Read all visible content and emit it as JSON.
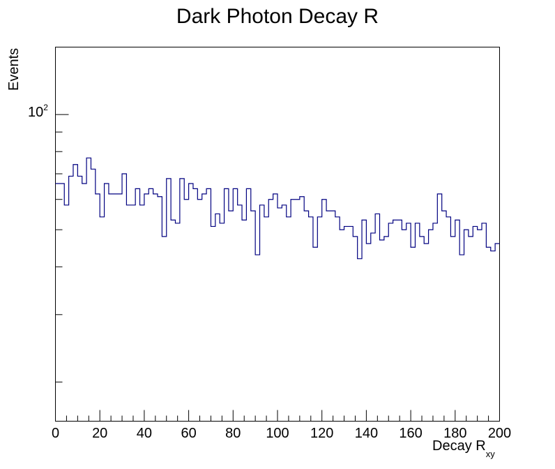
{
  "chart_data": {
    "type": "histogram",
    "title": "Dark Photon Decay R",
    "xlabel_main": "Decay R",
    "xlabel_sub": "xy",
    "ylabel": "Events",
    "y_scale": "log",
    "xlim": [
      0,
      200
    ],
    "ylim": [
      15.8,
      150
    ],
    "bin_width": 2,
    "x_ticks": [
      "0",
      "20",
      "40",
      "60",
      "80",
      "100",
      "120",
      "140",
      "160",
      "180",
      "200"
    ],
    "y_tick_base": "10",
    "y_tick_exponent": "2",
    "line_color": "#000080",
    "values": [
      66,
      66,
      58,
      69,
      74,
      69,
      66,
      77,
      72,
      62,
      54,
      66,
      62,
      62,
      62,
      70,
      58,
      58,
      64,
      58,
      62,
      64,
      62,
      61,
      48,
      68,
      53,
      52,
      68,
      60,
      66,
      64,
      60,
      62,
      64,
      51,
      55,
      52,
      64,
      56,
      64,
      58,
      53,
      64,
      56,
      43,
      58,
      54,
      60,
      62,
      57,
      58,
      54,
      60,
      60,
      61,
      56,
      54,
      45,
      54,
      60,
      56,
      56,
      54,
      50,
      51,
      51,
      48,
      42,
      53,
      46,
      49,
      55,
      47,
      48,
      52,
      53,
      53,
      50,
      52,
      45,
      52,
      48,
      46,
      50,
      52,
      62,
      56,
      54,
      48,
      53,
      43,
      50,
      48,
      51,
      50,
      52,
      45,
      44,
      46
    ]
  }
}
